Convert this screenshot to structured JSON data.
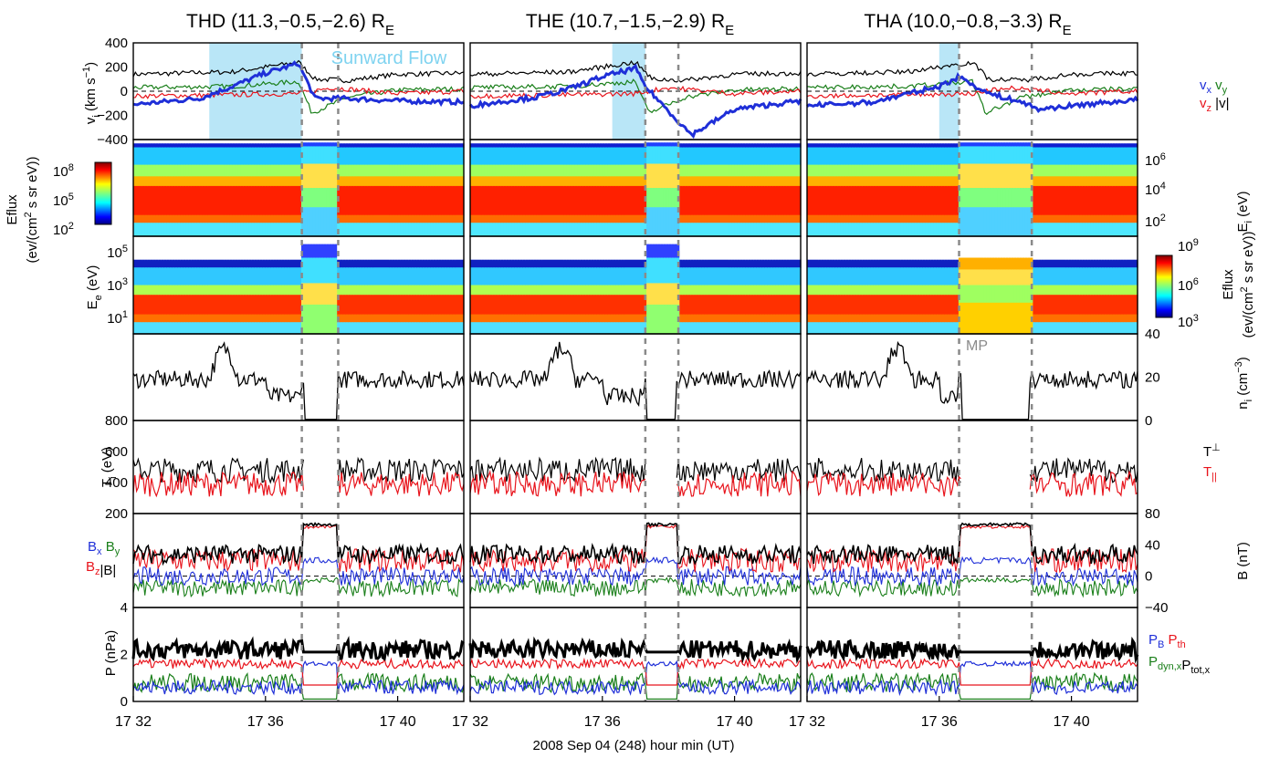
{
  "titles": [
    {
      "probe": "THD",
      "coords": "(11.3,−0.5,−2.6)",
      "unit": "R",
      "unit_sub": "E"
    },
    {
      "probe": "THE",
      "coords": "(10.7,−1.5,−2.9)",
      "unit": "R",
      "unit_sub": "E"
    },
    {
      "probe": "THA",
      "coords": "(10.0,−0.8,−3.3)",
      "unit": "R",
      "unit_sub": "E"
    }
  ],
  "xlabel": "2008 Sep 04 (248)  hour min (UT)",
  "xticks": [
    [
      "17 32",
      "17 36",
      "17 40"
    ],
    [
      "17 32",
      "17 36",
      "17 40"
    ],
    [
      "17 32",
      "17 36",
      "17 40"
    ]
  ],
  "annotations": {
    "sunward_flow": "Sunward Flow",
    "mp": "MP"
  },
  "colors": {
    "black": "#000000",
    "red": "#e8141c",
    "green": "#1a7f1a",
    "blue": "#1f2fd8",
    "shade": "#b9e6f7",
    "sunward_text": "#7fd3f0",
    "dash": "#8a8a8a"
  },
  "panels": {
    "v": {
      "ylabel": "v",
      "ylabel_sub": "i",
      "ylabel_unit": "(km s",
      "ylabel_exp": "−1",
      "ylabel_close": ")",
      "ticks_left": [
        "400",
        "200",
        "0",
        "−200",
        "−400"
      ],
      "legend": {
        "vx": "v",
        "vx_sub": "x",
        "vy": "v",
        "vy_sub": "y",
        "vz": "v",
        "vz_sub": "z",
        "vm": "|v|"
      }
    },
    "ion_spec": {
      "ylabel": "E",
      "ylabel_sub": "i",
      "ylabel_unit": "(eV)",
      "ticks_right": [
        {
          "base": "10",
          "exp": "6"
        },
        {
          "base": "10",
          "exp": "4"
        },
        {
          "base": "10",
          "exp": "2"
        }
      ]
    },
    "elec_spec": {
      "ylabel": "E",
      "ylabel_sub": "e",
      "ylabel_unit": "(eV)",
      "ticks_left": [
        {
          "base": "10",
          "exp": "5"
        },
        {
          "base": "10",
          "exp": "3"
        },
        {
          "base": "10",
          "exp": "1"
        }
      ]
    },
    "n": {
      "ylabel": "n",
      "ylabel_sub": "i",
      "ylabel_unit": "(cm",
      "ylabel_exp": "−3",
      "ylabel_close": ")",
      "ticks_right": [
        "40",
        "20",
        "0"
      ]
    },
    "T": {
      "ylabel": "T",
      "ylabel_sub": "i",
      "ylabel_unit": "(eV)",
      "ticks_left": [
        "800",
        "600",
        "400",
        "200"
      ],
      "legend": {
        "tperp": "T",
        "tperp_sub": "⊥",
        "tpar": "T",
        "tpar_sub": "||"
      }
    },
    "B": {
      "ylabel": "B (nT)",
      "ticks_right": [
        "80",
        "40",
        "0",
        "−40"
      ],
      "legend": {
        "bx": "B",
        "bx_sub": "x",
        "by": "B",
        "by_sub": "y",
        "bz": "B",
        "bz_sub": "z",
        "bm": "|B|"
      }
    },
    "P": {
      "ylabel": "P (nPa)",
      "ticks_left": [
        "4",
        "2",
        "0"
      ],
      "legend": {
        "pb": "P",
        "pb_sub": "B",
        "pth": "P",
        "pth_sub": "th",
        "pdyn": "P",
        "pdyn_sub": "dyn,x",
        "ptot": "P",
        "ptot_sub": "tot,x"
      }
    }
  },
  "colorbars": {
    "ion": {
      "title": "Eflux",
      "unit_l1": "(ev/(cm",
      "unit_exp": "2",
      "unit_l2": " s sr eV))",
      "ticks": [
        {
          "base": "10",
          "exp": "8"
        },
        {
          "base": "10",
          "exp": "5"
        },
        {
          "base": "10",
          "exp": "2"
        }
      ]
    },
    "elec": {
      "title": "Eflux",
      "unit_l1": "(ev/(cm",
      "unit_exp": "2",
      "unit_l2": " s sr eV))",
      "ticks": [
        {
          "base": "10",
          "exp": "9"
        },
        {
          "base": "10",
          "exp": "6"
        },
        {
          "base": "10",
          "exp": "3"
        }
      ]
    }
  },
  "chart_data": {
    "type": "line",
    "time_range": [
      "17:32",
      "17:42"
    ],
    "probes": [
      "THD",
      "THE",
      "THA"
    ],
    "event_times_min": [
      [
        37.1,
        38.2
      ],
      [
        37.3,
        38.3
      ],
      [
        36.6,
        38.8
      ]
    ],
    "sunward_flow_intervals_min": [
      [
        34.3,
        37.1
      ],
      [
        36.3,
        37.3
      ],
      [
        36.0,
        36.6
      ]
    ],
    "ylims": {
      "v": [
        -400,
        400
      ],
      "n": [
        0,
        40
      ],
      "T": [
        200,
        800
      ],
      "B": [
        -40,
        80
      ],
      "P": [
        0,
        4
      ]
    },
    "series_v": [
      {
        "name": "vx",
        "color": "blue",
        "values": [
          [
            32,
            -110
          ],
          [
            34,
            -60
          ],
          [
            35,
            40
          ],
          [
            36,
            150
          ],
          [
            37,
            230
          ],
          [
            37.5,
            -60
          ],
          [
            38.5,
            -60
          ],
          [
            40,
            -80
          ],
          [
            42,
            -90
          ]
        ],
        "values_THE": [
          [
            32,
            -120
          ],
          [
            34,
            -50
          ],
          [
            35,
            20
          ],
          [
            36,
            120
          ],
          [
            37,
            190
          ],
          [
            37.3,
            40
          ],
          [
            38.3,
            -250
          ],
          [
            38.7,
            -360
          ],
          [
            40,
            -150
          ],
          [
            42,
            -80
          ]
        ],
        "values_THA": [
          [
            32,
            -120
          ],
          [
            34,
            -90
          ],
          [
            36,
            40
          ],
          [
            36.6,
            120
          ],
          [
            37.5,
            -20
          ],
          [
            38.5,
            -90
          ],
          [
            39,
            -150
          ],
          [
            40,
            -120
          ],
          [
            42,
            -70
          ]
        ]
      },
      {
        "name": "vy",
        "color": "green",
        "values": [
          [
            32,
            30
          ],
          [
            35,
            40
          ],
          [
            37,
            80
          ],
          [
            37.4,
            -180
          ],
          [
            38.5,
            -50
          ],
          [
            40,
            10
          ],
          [
            42,
            20
          ]
        ]
      },
      {
        "name": "vz",
        "color": "red",
        "values": [
          [
            32,
            -40
          ],
          [
            35,
            -30
          ],
          [
            37,
            -20
          ],
          [
            38,
            30
          ],
          [
            40,
            -20
          ],
          [
            42,
            0
          ]
        ]
      },
      {
        "name": "|v|",
        "color": "black",
        "values": [
          [
            32,
            140
          ],
          [
            35,
            160
          ],
          [
            37,
            240
          ],
          [
            37.5,
            100
          ],
          [
            38.5,
            90
          ],
          [
            40,
            140
          ],
          [
            42,
            150
          ]
        ]
      }
    ],
    "series_n": {
      "pre_mean": 20,
      "peak": [
        34.5,
        35
      ],
      "cavity": [
        37.1,
        38.2
      ],
      "post_mean": 20
    },
    "series_T": {
      "tperp_mean": 480,
      "tpar_mean": 390
    },
    "series_B": {
      "bm_mean": 25,
      "bm_cavity": 65,
      "bx_mean": 0,
      "by_mean": -15,
      "bz_mean": 20
    },
    "series_P": {
      "ptot_mean": 2.2,
      "pth_mean": 1.6,
      "pb_mean": 0.3,
      "pdyn_mean": 0.4
    }
  }
}
